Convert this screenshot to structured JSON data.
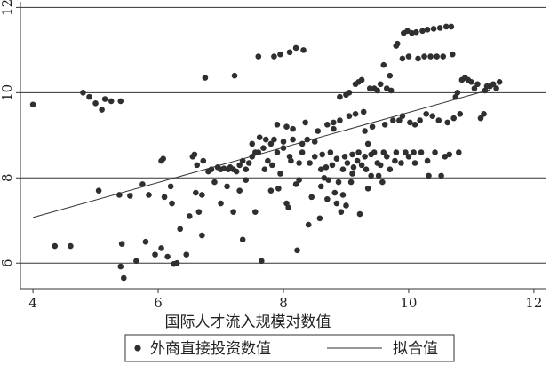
{
  "chart_data": {
    "type": "scatter",
    "xlabel": "国际人才流入规模对数值",
    "ylabel": "",
    "xlim": [
      3.8,
      12.2
    ],
    "ylim": [
      5.4,
      12.05
    ],
    "x_ticks": [
      "4",
      "6",
      "8",
      "10",
      "12"
    ],
    "y_ticks": [
      "6",
      "8",
      "10",
      "12"
    ],
    "grid": "horizontal",
    "legend_position": "bottom",
    "colors": {
      "points": "#2f2f2f",
      "fit_line": "#333333",
      "grid": "#333333",
      "axis": "#333333"
    },
    "legend": [
      {
        "label": "外商直接投资数值",
        "marker": "dot"
      },
      {
        "label": "拟合值",
        "marker": "line"
      }
    ],
    "series": [
      {
        "name": "外商直接投资数值",
        "kind": "scatter",
        "points": [
          [
            4.0,
            9.72
          ],
          [
            4.35,
            6.4
          ],
          [
            4.6,
            6.4
          ],
          [
            4.8,
            10.0
          ],
          [
            4.9,
            9.9
          ],
          [
            5.0,
            9.75
          ],
          [
            5.05,
            7.7
          ],
          [
            5.1,
            9.6
          ],
          [
            5.15,
            9.85
          ],
          [
            5.25,
            9.8
          ],
          [
            5.38,
            7.6
          ],
          [
            5.4,
            9.8
          ],
          [
            5.42,
            6.45
          ],
          [
            5.4,
            5.92
          ],
          [
            5.45,
            5.65
          ],
          [
            5.55,
            7.58
          ],
          [
            5.65,
            6.05
          ],
          [
            5.75,
            7.85
          ],
          [
            5.8,
            6.5
          ],
          [
            5.85,
            7.6
          ],
          [
            5.95,
            6.2
          ],
          [
            6.05,
            6.35
          ],
          [
            6.05,
            8.4
          ],
          [
            6.08,
            8.45
          ],
          [
            6.1,
            7.55
          ],
          [
            6.15,
            6.15
          ],
          [
            6.2,
            7.8
          ],
          [
            6.22,
            7.4
          ],
          [
            6.25,
            5.98
          ],
          [
            6.3,
            6.0
          ],
          [
            6.35,
            6.8
          ],
          [
            6.45,
            6.2
          ],
          [
            6.5,
            7.1
          ],
          [
            6.55,
            8.5
          ],
          [
            6.58,
            8.55
          ],
          [
            6.6,
            7.65
          ],
          [
            6.62,
            8.3
          ],
          [
            6.65,
            7.2
          ],
          [
            6.7,
            6.65
          ],
          [
            6.7,
            7.6
          ],
          [
            6.72,
            8.4
          ],
          [
            6.75,
            10.35
          ],
          [
            6.8,
            8.15
          ],
          [
            6.85,
            8.2
          ],
          [
            6.9,
            7.9
          ],
          [
            6.95,
            8.25
          ],
          [
            7.0,
            7.4
          ],
          [
            7.0,
            8.2
          ],
          [
            7.05,
            8.22
          ],
          [
            7.1,
            7.8
          ],
          [
            7.12,
            8.2
          ],
          [
            7.15,
            8.25
          ],
          [
            7.2,
            7.2
          ],
          [
            7.2,
            8.2
          ],
          [
            7.22,
            10.4
          ],
          [
            7.25,
            8.15
          ],
          [
            7.3,
            7.7
          ],
          [
            7.3,
            8.3
          ],
          [
            7.35,
            8.4
          ],
          [
            7.35,
            6.55
          ],
          [
            7.4,
            8.2
          ],
          [
            7.4,
            7.95
          ],
          [
            7.45,
            8.35
          ],
          [
            7.5,
            8.5
          ],
          [
            7.5,
            8.8
          ],
          [
            7.55,
            7.2
          ],
          [
            7.55,
            8.6
          ],
          [
            7.6,
            10.85
          ],
          [
            7.6,
            8.6
          ],
          [
            7.62,
            8.95
          ],
          [
            7.65,
            6.05
          ],
          [
            7.68,
            8.7
          ],
          [
            7.7,
            8.2
          ],
          [
            7.72,
            8.9
          ],
          [
            7.75,
            8.4
          ],
          [
            7.8,
            7.7
          ],
          [
            7.8,
            8.8
          ],
          [
            7.82,
            8.3
          ],
          [
            7.85,
            8.9
          ],
          [
            7.85,
            10.85
          ],
          [
            7.9,
            9.25
          ],
          [
            7.9,
            8.6
          ],
          [
            7.92,
            7.75
          ],
          [
            7.95,
            8.1
          ],
          [
            7.95,
            10.9
          ],
          [
            8.0,
            8.7
          ],
          [
            8.0,
            8.85
          ],
          [
            8.05,
            7.4
          ],
          [
            8.05,
            9.2
          ],
          [
            8.08,
            7.3
          ],
          [
            8.1,
            8.5
          ],
          [
            8.1,
            10.95
          ],
          [
            8.12,
            8.4
          ],
          [
            8.15,
            8.9
          ],
          [
            8.15,
            9.15
          ],
          [
            8.2,
            7.85
          ],
          [
            8.2,
            11.05
          ],
          [
            8.22,
            6.3
          ],
          [
            8.25,
            8.35
          ],
          [
            8.25,
            7.95
          ],
          [
            8.3,
            8.8
          ],
          [
            8.3,
            8.6
          ],
          [
            8.32,
            11.0
          ],
          [
            8.35,
            9.3
          ],
          [
            8.38,
            8.9
          ],
          [
            8.4,
            6.9
          ],
          [
            8.42,
            8.35
          ],
          [
            8.45,
            7.55
          ],
          [
            8.5,
            8.5
          ],
          [
            8.5,
            8.85
          ],
          [
            8.55,
            9.1
          ],
          [
            8.58,
            7.05
          ],
          [
            8.6,
            7.8
          ],
          [
            8.6,
            8.2
          ],
          [
            8.62,
            8.55
          ],
          [
            8.65,
            8.0
          ],
          [
            8.68,
            8.25
          ],
          [
            8.7,
            7.5
          ],
          [
            8.7,
            9.25
          ],
          [
            8.72,
            7.95
          ],
          [
            8.75,
            8.6
          ],
          [
            8.78,
            8.3
          ],
          [
            8.8,
            9.15
          ],
          [
            8.8,
            9.3
          ],
          [
            8.82,
            7.65
          ],
          [
            8.85,
            7.4
          ],
          [
            8.85,
            8.45
          ],
          [
            8.88,
            7.9
          ],
          [
            8.9,
            9.35
          ],
          [
            8.9,
            9.9
          ],
          [
            8.92,
            7.2
          ],
          [
            8.95,
            8.2
          ],
          [
            8.95,
            7.6
          ],
          [
            8.98,
            8.5
          ],
          [
            9.0,
            9.95
          ],
          [
            9.0,
            7.35
          ],
          [
            9.02,
            8.35
          ],
          [
            9.05,
            9.45
          ],
          [
            9.05,
            10.0
          ],
          [
            9.08,
            7.9
          ],
          [
            9.1,
            8.55
          ],
          [
            9.1,
            8.1
          ],
          [
            9.12,
            8.25
          ],
          [
            9.15,
            9.5
          ],
          [
            9.15,
            10.2
          ],
          [
            9.18,
            8.4
          ],
          [
            9.2,
            10.25
          ],
          [
            9.2,
            8.6
          ],
          [
            9.22,
            7.15
          ],
          [
            9.25,
            10.3
          ],
          [
            9.25,
            8.3
          ],
          [
            9.28,
            9.55
          ],
          [
            9.3,
            8.5
          ],
          [
            9.3,
            9.1
          ],
          [
            9.32,
            8.2
          ],
          [
            9.35,
            7.75
          ],
          [
            9.35,
            8.8
          ],
          [
            9.38,
            10.1
          ],
          [
            9.4,
            8.05
          ],
          [
            9.4,
            8.55
          ],
          [
            9.42,
            9.2
          ],
          [
            9.45,
            8.6
          ],
          [
            9.45,
            10.1
          ],
          [
            9.5,
            10.05
          ],
          [
            9.5,
            8.35
          ],
          [
            9.52,
            8.05
          ],
          [
            9.55,
            10.2
          ],
          [
            9.55,
            8.3
          ],
          [
            9.58,
            7.9
          ],
          [
            9.6,
            10.65
          ],
          [
            9.6,
            8.6
          ],
          [
            9.62,
            9.25
          ],
          [
            9.65,
            10.1
          ],
          [
            9.65,
            8.5
          ],
          [
            9.7,
            10.4
          ],
          [
            9.7,
            8.2
          ],
          [
            9.72,
            10.05
          ],
          [
            9.75,
            9.35
          ],
          [
            9.78,
            8.4
          ],
          [
            9.8,
            11.1
          ],
          [
            9.8,
            8.6
          ],
          [
            9.82,
            11.15
          ],
          [
            9.85,
            9.35
          ],
          [
            9.88,
            8.35
          ],
          [
            9.9,
            10.8
          ],
          [
            9.9,
            9.45
          ],
          [
            9.92,
            11.4
          ],
          [
            9.95,
            8.6
          ],
          [
            9.98,
            11.45
          ],
          [
            10.0,
            10.85
          ],
          [
            10.0,
            8.5
          ],
          [
            10.02,
            9.3
          ],
          [
            10.05,
            11.4
          ],
          [
            10.08,
            8.6
          ],
          [
            10.1,
            9.25
          ],
          [
            10.1,
            8.35
          ],
          [
            10.12,
            11.42
          ],
          [
            10.15,
            10.8
          ],
          [
            10.18,
            9.35
          ],
          [
            10.2,
            8.6
          ],
          [
            10.22,
            11.45
          ],
          [
            10.25,
            10.85
          ],
          [
            10.28,
            9.5
          ],
          [
            10.3,
            8.4
          ],
          [
            10.3,
            11.48
          ],
          [
            10.32,
            8.05
          ],
          [
            10.35,
            10.85
          ],
          [
            10.38,
            9.45
          ],
          [
            10.4,
            11.5
          ],
          [
            10.42,
            8.6
          ],
          [
            10.45,
            10.85
          ],
          [
            10.48,
            9.35
          ],
          [
            10.5,
            11.52
          ],
          [
            10.52,
            8.05
          ],
          [
            10.55,
            10.85
          ],
          [
            10.58,
            8.5
          ],
          [
            10.6,
            11.55
          ],
          [
            10.62,
            9.3
          ],
          [
            10.65,
            8.55
          ],
          [
            10.68,
            11.55
          ],
          [
            10.7,
            10.9
          ],
          [
            10.72,
            9.4
          ],
          [
            10.75,
            9.9
          ],
          [
            10.78,
            10.0
          ],
          [
            10.8,
            8.6
          ],
          [
            10.82,
            9.5
          ],
          [
            10.85,
            10.3
          ],
          [
            10.9,
            10.35
          ],
          [
            10.95,
            10.3
          ],
          [
            11.0,
            10.25
          ],
          [
            11.05,
            10.1
          ],
          [
            11.1,
            10.2
          ],
          [
            11.15,
            9.4
          ],
          [
            11.2,
            9.5
          ],
          [
            11.22,
            10.05
          ],
          [
            11.25,
            10.15
          ],
          [
            11.3,
            10.15
          ],
          [
            11.35,
            10.2
          ],
          [
            11.4,
            10.1
          ],
          [
            11.45,
            10.25
          ]
        ]
      },
      {
        "name": "拟合值",
        "kind": "line",
        "points": [
          [
            4.0,
            7.07
          ],
          [
            11.3,
            10.07
          ]
        ]
      }
    ]
  }
}
